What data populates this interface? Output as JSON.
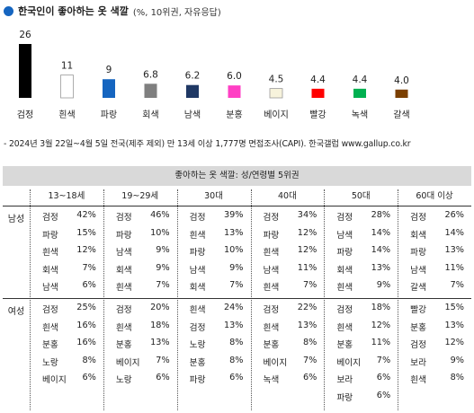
{
  "title": "한국인이 좋아하는 옷 색깔",
  "subtitle": "(%, 10위권, 자유응답)",
  "colors": {
    "title_dot": "#1565c0"
  },
  "chart_data": {
    "type": "bar",
    "categories": [
      "검정",
      "흰색",
      "파랑",
      "회색",
      "남색",
      "분홍",
      "베이지",
      "빨강",
      "녹색",
      "갈색"
    ],
    "values": [
      26,
      11,
      9,
      6.8,
      6.2,
      6.0,
      4.5,
      4.4,
      4.4,
      4.0
    ],
    "value_labels": [
      "26",
      "11",
      "9",
      "6.8",
      "6.2",
      "6.0",
      "4.5",
      "4.4",
      "4.4",
      "4.0"
    ],
    "bar_colors": [
      "#000000",
      "#ffffff",
      "#1565c0",
      "#7f7f7f",
      "#1f3864",
      "#ff3fc4",
      "#f7f3dc",
      "#ff0000",
      "#00b050",
      "#7b3f00"
    ],
    "ylim": [
      0,
      26
    ],
    "grid": false,
    "legend": "none"
  },
  "note": "- 2024년 3월 22일~4월 5일 전국(제주 제외) 만 13세 이상 1,777명 면접조사(CAPI). 한국갤럽 www.gallup.co.kr",
  "table": {
    "title": "좋아하는 옷 색깔: 성/연령별 5위권",
    "columns": [
      "13~18세",
      "19~29세",
      "30대",
      "40대",
      "50대",
      "60대 이상"
    ],
    "rows": [
      {
        "label": "남성",
        "cells": [
          [
            [
              "검정",
              "42%"
            ],
            [
              "파랑",
              "15%"
            ],
            [
              "흰색",
              "12%"
            ],
            [
              "회색",
              "7%"
            ],
            [
              "남색",
              "6%"
            ]
          ],
          [
            [
              "검정",
              "46%"
            ],
            [
              "파랑",
              "10%"
            ],
            [
              "남색",
              "9%"
            ],
            [
              "회색",
              "9%"
            ],
            [
              "흰색",
              "7%"
            ]
          ],
          [
            [
              "검정",
              "39%"
            ],
            [
              "흰색",
              "13%"
            ],
            [
              "파랑",
              "10%"
            ],
            [
              "남색",
              "9%"
            ],
            [
              "회색",
              "7%"
            ]
          ],
          [
            [
              "검정",
              "34%"
            ],
            [
              "파랑",
              "12%"
            ],
            [
              "흰색",
              "12%"
            ],
            [
              "남색",
              "11%"
            ],
            [
              "흰색",
              "7%"
            ]
          ],
          [
            [
              "검정",
              "28%"
            ],
            [
              "남색",
              "14%"
            ],
            [
              "파랑",
              "14%"
            ],
            [
              "회색",
              "13%"
            ],
            [
              "흰색",
              "9%"
            ]
          ],
          [
            [
              "검정",
              "26%"
            ],
            [
              "회색",
              "14%"
            ],
            [
              "파랑",
              "13%"
            ],
            [
              "남색",
              "11%"
            ],
            [
              "갈색",
              "7%"
            ]
          ]
        ]
      },
      {
        "label": "여성",
        "cells": [
          [
            [
              "검정",
              "25%"
            ],
            [
              "흰색",
              "16%"
            ],
            [
              "분홍",
              "16%"
            ],
            [
              "노랑",
              "8%"
            ],
            [
              "베이지",
              "6%"
            ]
          ],
          [
            [
              "검정",
              "20%"
            ],
            [
              "흰색",
              "18%"
            ],
            [
              "분홍",
              "13%"
            ],
            [
              "베이지",
              "7%"
            ],
            [
              "노랑",
              "6%"
            ]
          ],
          [
            [
              "흰색",
              "24%"
            ],
            [
              "검정",
              "13%"
            ],
            [
              "노랑",
              "8%"
            ],
            [
              "분홍",
              "8%"
            ],
            [
              "파랑",
              "6%"
            ]
          ],
          [
            [
              "검정",
              "22%"
            ],
            [
              "흰색",
              "13%"
            ],
            [
              "분홍",
              "8%"
            ],
            [
              "베이지",
              "7%"
            ],
            [
              "녹색",
              "6%"
            ]
          ],
          [
            [
              "검정",
              "18%"
            ],
            [
              "흰색",
              "12%"
            ],
            [
              "분홍",
              "11%"
            ],
            [
              "베이지",
              "7%"
            ],
            [
              "보라",
              "6%"
            ],
            [
              "파랑",
              "6%"
            ]
          ],
          [
            [
              "빨강",
              "15%"
            ],
            [
              "분홍",
              "13%"
            ],
            [
              "검정",
              "12%"
            ],
            [
              "보라",
              "9%"
            ],
            [
              "흰색",
              "8%"
            ]
          ]
        ]
      }
    ]
  }
}
